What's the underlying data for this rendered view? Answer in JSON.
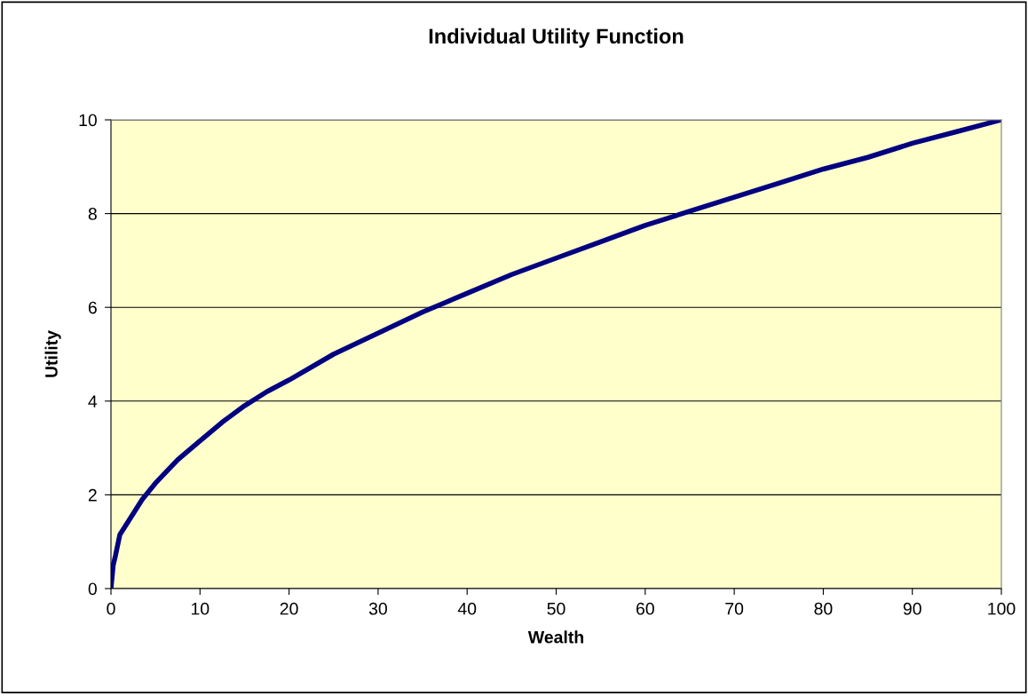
{
  "chart_data": {
    "type": "line",
    "title": "Individual Utility Function",
    "xlabel": "Wealth",
    "ylabel": "Utility",
    "x": [
      0,
      0.25,
      0.5,
      1,
      2,
      3.5,
      5,
      7.5,
      10,
      12.5,
      15,
      17.5,
      20,
      25,
      30,
      35,
      40,
      45,
      50,
      55,
      60,
      65,
      70,
      75,
      80,
      85,
      90,
      95,
      100
    ],
    "series": [
      {
        "color": "#000080",
        "values": [
          0,
          0.5,
          0.7,
          1.15,
          1.45,
          1.9,
          2.25,
          2.75,
          3.15,
          3.55,
          3.9,
          4.2,
          4.45,
          5.0,
          5.45,
          5.9,
          6.3,
          6.7,
          7.05,
          7.4,
          7.75,
          8.05,
          8.35,
          8.65,
          8.95,
          9.2,
          9.5,
          9.75,
          10
        ]
      }
    ],
    "xlim": [
      0,
      100
    ],
    "xticks": [
      0,
      10,
      20,
      30,
      40,
      50,
      60,
      70,
      80,
      90,
      100
    ],
    "ylim": [
      0,
      10
    ],
    "yticks": [
      0,
      2,
      4,
      6,
      8,
      10
    ],
    "grid": "y",
    "legend": false
  }
}
